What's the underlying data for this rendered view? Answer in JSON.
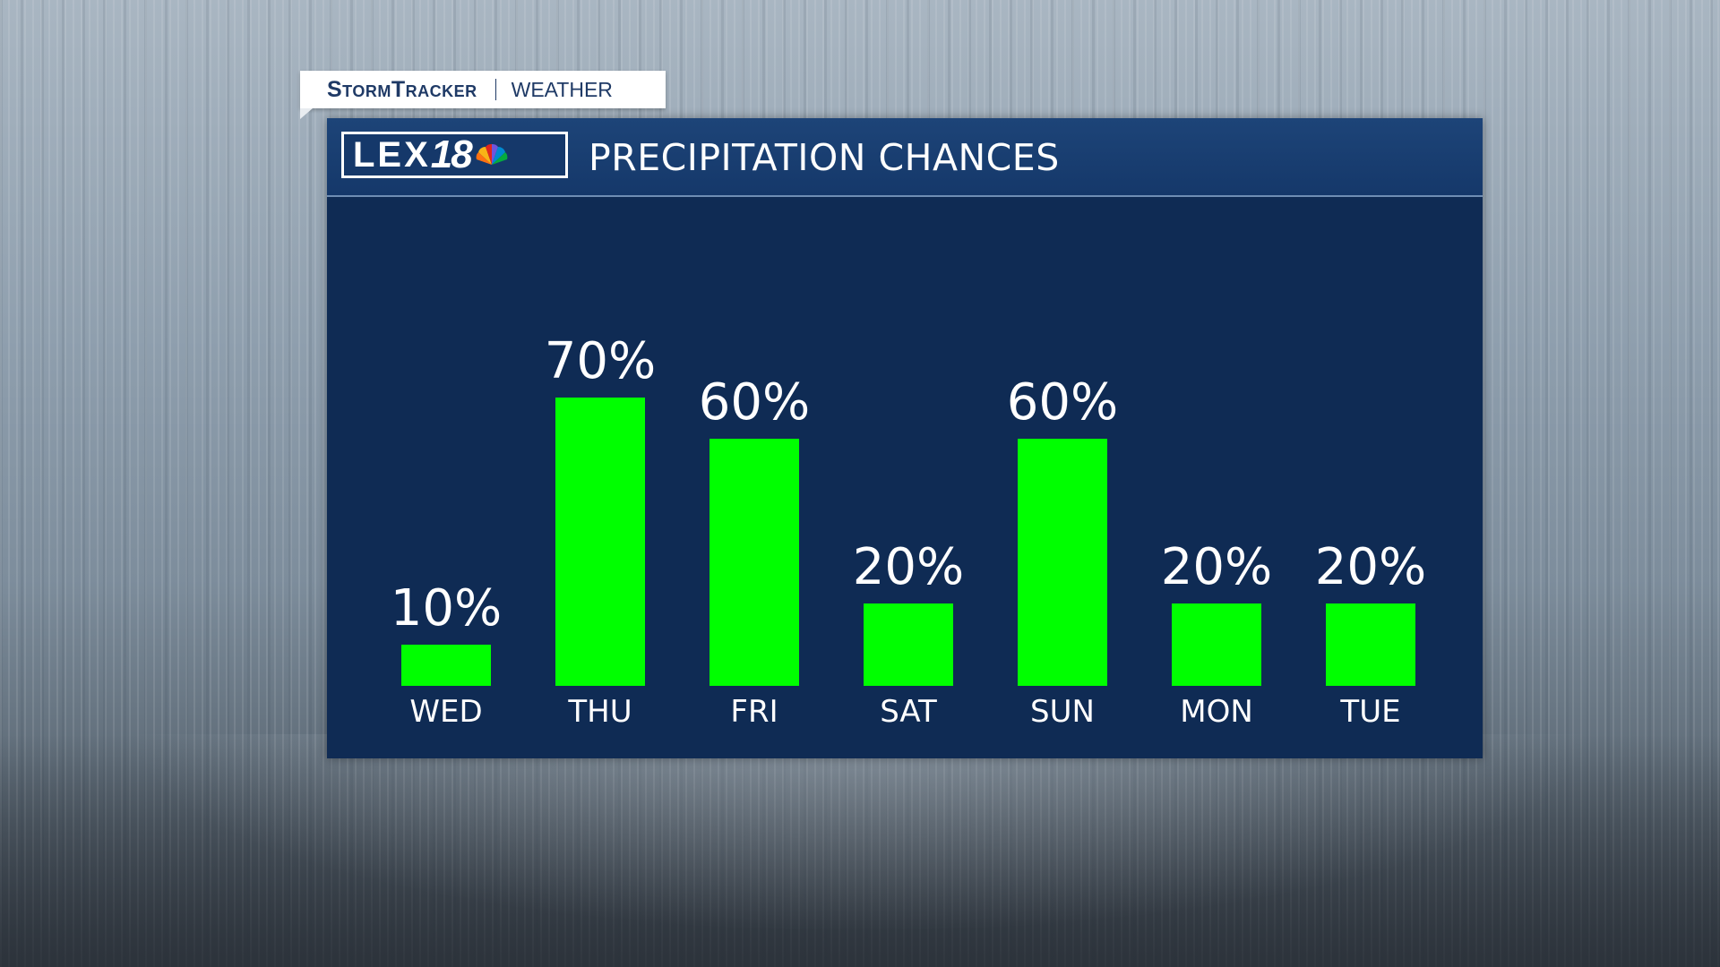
{
  "branding": {
    "tag_brand": "StormTracker",
    "tag_section": "WEATHER",
    "logo_text": "LEX",
    "logo_number": "18"
  },
  "header": {
    "title": "PRECIPITATION CHANCES"
  },
  "colors": {
    "panel": "#0f2b54",
    "header": "#1d4478",
    "bar": "#00ff00",
    "text": "#ffffff"
  },
  "chart_data": {
    "type": "bar",
    "title": "PRECIPITATION CHANCES",
    "categories": [
      "WED",
      "THU",
      "FRI",
      "SAT",
      "SUN",
      "MON",
      "TUE"
    ],
    "values": [
      10,
      70,
      60,
      20,
      60,
      20,
      20
    ],
    "value_labels": [
      "10%",
      "70%",
      "60%",
      "20%",
      "60%",
      "20%",
      "20%"
    ],
    "xlabel": "",
    "ylabel": "",
    "ylim": [
      0,
      100
    ],
    "grid": false,
    "legend": "none"
  }
}
